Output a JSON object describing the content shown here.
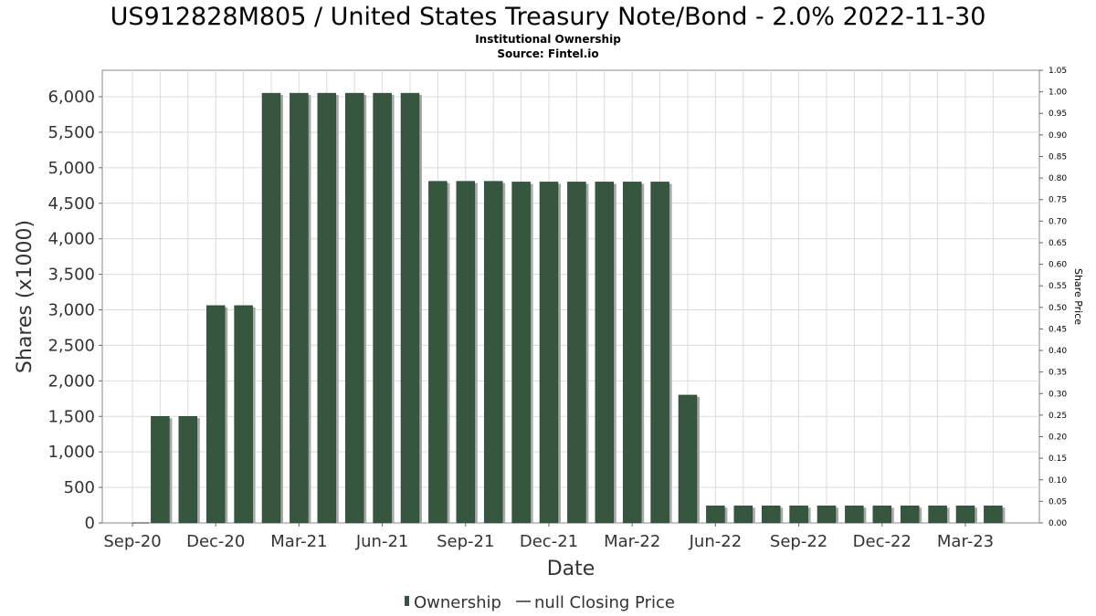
{
  "chart_data": {
    "type": "bar",
    "title": "US912828M805 / United States Treasury Note/Bond - 2.0% 2022-11-30",
    "subtitle": "Institutional Ownership",
    "source": "Source: Fintel.io",
    "xlabel": "Date",
    "ylabel": "Shares (x1000)",
    "y2label": "Share Price",
    "ylim": [
      0,
      6400
    ],
    "y2lim": [
      0,
      1.05
    ],
    "yticks": [
      "0",
      "500",
      "1,000",
      "1,500",
      "2,000",
      "2,500",
      "3,000",
      "3,500",
      "4,000",
      "4,500",
      "5,000",
      "5,500",
      "6,000"
    ],
    "y2ticks": [
      "0.00",
      "0.05",
      "0.10",
      "0.15",
      "0.20",
      "0.25",
      "0.30",
      "0.35",
      "0.40",
      "0.45",
      "0.50",
      "0.55",
      "0.60",
      "0.65",
      "0.70",
      "0.75",
      "0.80",
      "0.85",
      "0.90",
      "0.95",
      "1.00",
      "1.05"
    ],
    "xticks": [
      "Sep-20",
      "Dec-20",
      "Mar-21",
      "Jun-21",
      "Sep-21",
      "Dec-21",
      "Mar-22",
      "Jun-22",
      "Sep-22",
      "Dec-22",
      "Mar-23"
    ],
    "grid": true,
    "legend_position": "bottom",
    "colors": {
      "bar": "#36563f",
      "shadow": "#a8a8a8",
      "grid": "#dcdcdc"
    },
    "series": [
      {
        "name": "Ownership",
        "values": [
          1500,
          1500,
          3060,
          3060,
          6050,
          6050,
          6050,
          6050,
          6050,
          6050,
          4810,
          4810,
          4810,
          4800,
          4800,
          4800,
          4800,
          4800,
          4800,
          1800,
          240,
          240,
          240,
          240,
          240,
          240,
          240,
          240,
          240,
          240,
          240
        ]
      },
      {
        "name": "null Closing Price",
        "values": []
      }
    ]
  }
}
